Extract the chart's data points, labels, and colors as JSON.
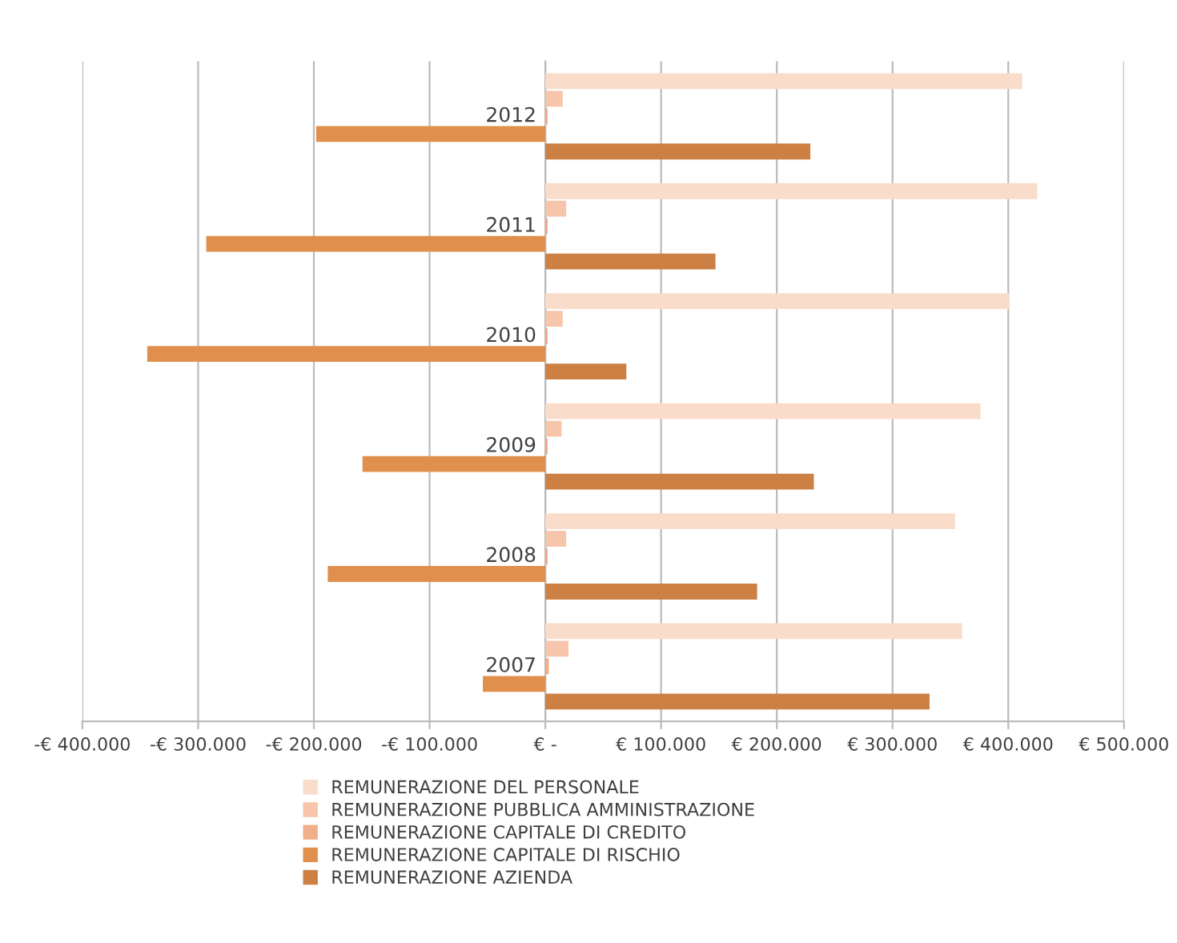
{
  "chart_data": {
    "type": "bar",
    "orientation": "horizontal",
    "categories": [
      "2012",
      "2011",
      "2010",
      "2009",
      "2008",
      "2007"
    ],
    "series": [
      {
        "name": "REMUNERAZIONE DEL PERSONALE",
        "color": "#fadccb",
        "values": [
          412000,
          425000,
          401000,
          376000,
          354000,
          360000
        ]
      },
      {
        "name": "REMUNERAZIONE PUBBLICA AMMINISTRAZIONE",
        "color": "#f6c5ab",
        "values": [
          15000,
          18000,
          15000,
          14000,
          18000,
          20000
        ]
      },
      {
        "name": "REMUNERAZIONE CAPITALE DI CREDITO",
        "color": "#f2ae88",
        "values": [
          2000,
          2000,
          2000,
          2000,
          2000,
          3000
        ]
      },
      {
        "name": "REMUNERAZIONE CAPITALE DI RISCHIO",
        "color": "#e0904c",
        "values": [
          -198000,
          -293000,
          -344000,
          -158000,
          -188000,
          -54000
        ]
      },
      {
        "name": "REMUNERAZIONE AZIENDA",
        "color": "#cd8043",
        "values": [
          229000,
          147000,
          70000,
          232000,
          183000,
          332000
        ]
      }
    ],
    "xlim": [
      -400000,
      500000
    ],
    "xticks": [
      {
        "value": -400000,
        "label": "-€ 400.000"
      },
      {
        "value": -300000,
        "label": "-€ 300.000"
      },
      {
        "value": -200000,
        "label": "-€ 200.000"
      },
      {
        "value": -100000,
        "label": "-€ 100.000"
      },
      {
        "value": 0,
        "label": "€ -"
      },
      {
        "value": 100000,
        "label": "€ 100.000"
      },
      {
        "value": 200000,
        "label": "€ 200.000"
      },
      {
        "value": 300000,
        "label": "€ 300.000"
      },
      {
        "value": 400000,
        "label": "€ 400.000"
      },
      {
        "value": 500000,
        "label": "€ 500.000"
      }
    ],
    "grid": "x",
    "legend": "bottom"
  }
}
